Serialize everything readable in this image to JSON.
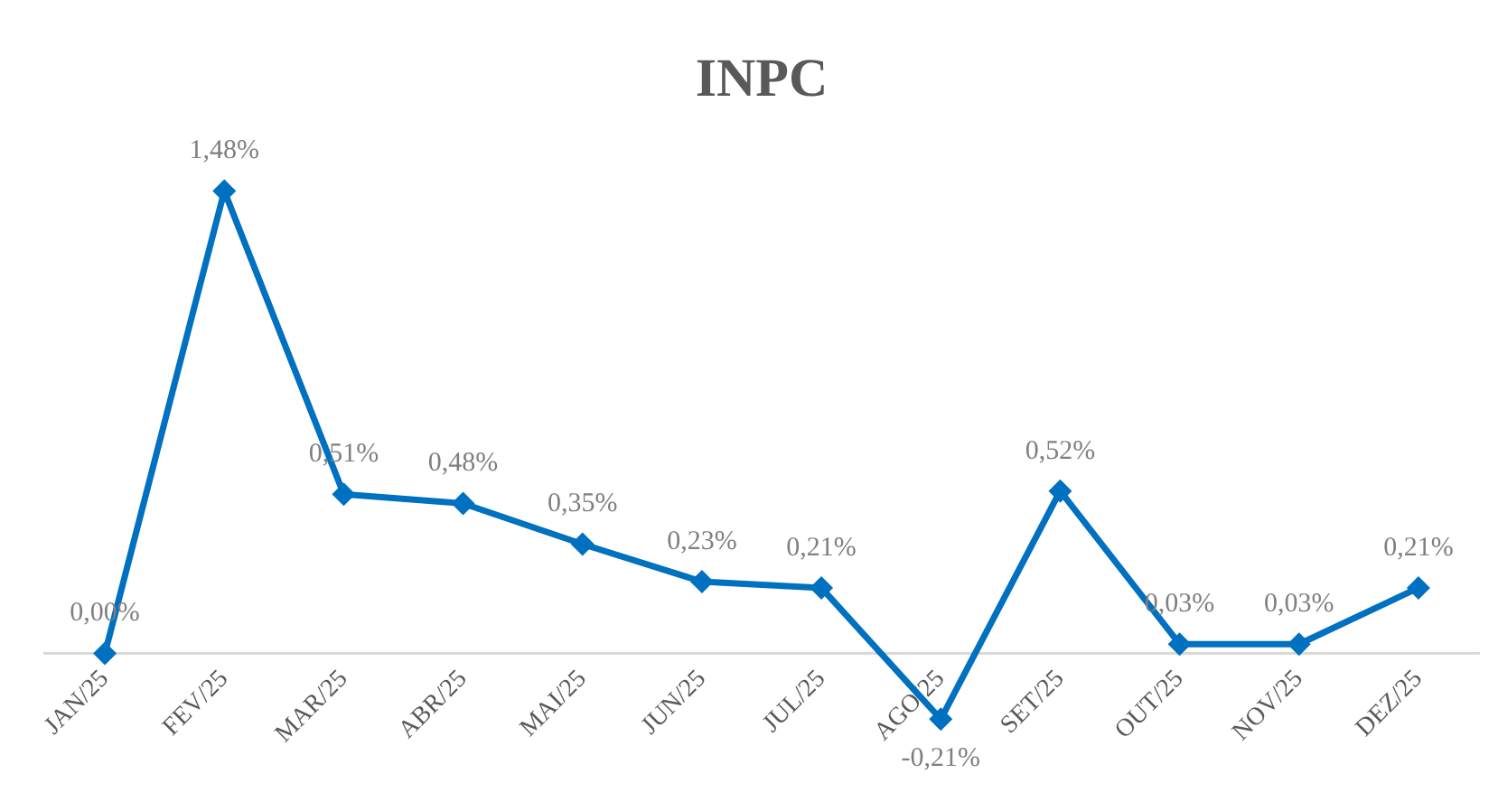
{
  "chart_data": {
    "type": "line",
    "title": "INPC",
    "categories": [
      "JAN/25",
      "FEV/25",
      "MAR/25",
      "ABR/25",
      "MAI/25",
      "JUN/25",
      "JUL/25",
      "AGO/25",
      "SET/25",
      "OUT/25",
      "NOV/25",
      "DEZ/25"
    ],
    "values": [
      0.0,
      1.48,
      0.51,
      0.48,
      0.35,
      0.23,
      0.21,
      -0.21,
      0.52,
      0.03,
      0.03,
      0.21
    ],
    "value_labels": [
      "0,00%",
      "1,48%",
      "0,51%",
      "0,48%",
      "0,35%",
      "0,23%",
      "0,21%",
      "-0,21%",
      "0,52%",
      "0,03%",
      "0,03%",
      "0,21%"
    ],
    "color": "#0070c0",
    "marker": "diamond",
    "line_style": "solid",
    "grid": false,
    "legend": false
  }
}
